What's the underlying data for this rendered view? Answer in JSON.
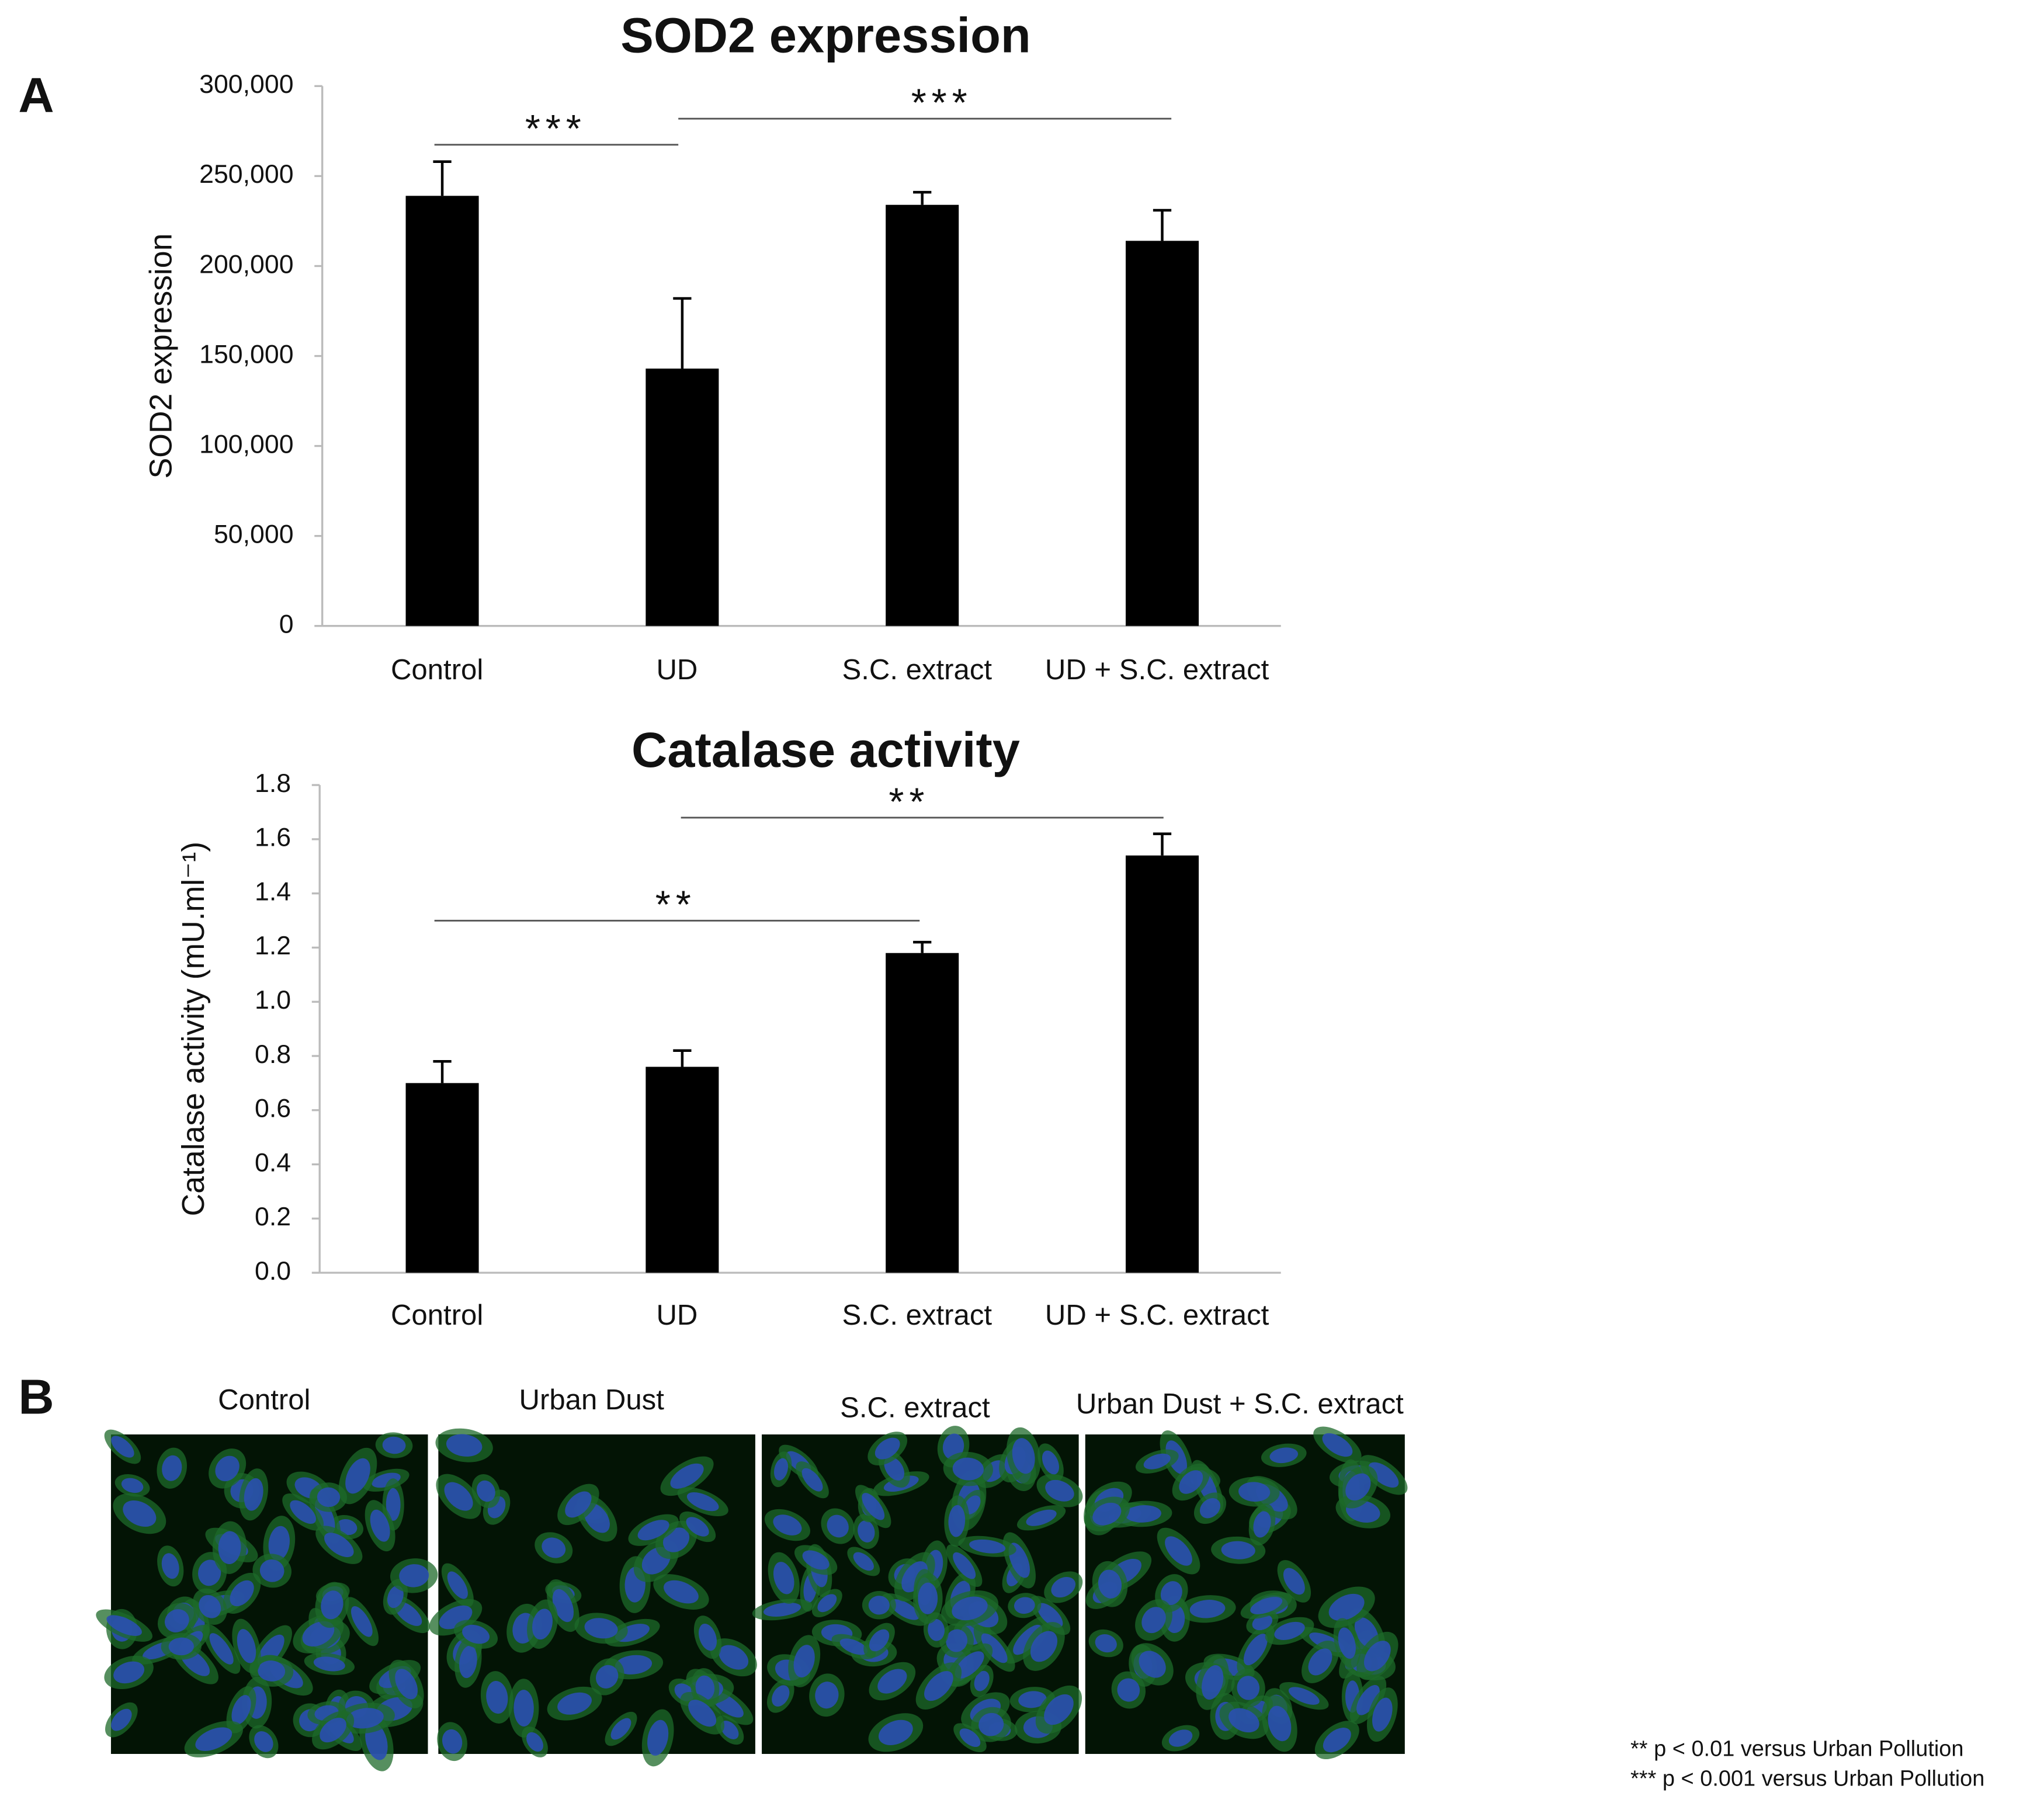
{
  "panel_labels": [
    "A",
    "B"
  ],
  "chart_data": [
    {
      "type": "bar",
      "title": "SOD2 expression",
      "y_label": "SOD2 expression",
      "categories": [
        "Control",
        "UD",
        "S.C. extract",
        "UD + S.C. extract"
      ],
      "values": [
        239000,
        143000,
        234000,
        214000
      ],
      "errors": [
        19000,
        39000,
        7000,
        17000
      ],
      "color": "#000000",
      "ylim": [
        0,
        300000
      ],
      "yticks": [
        0,
        {
          "value": 50000,
          "label": "50,000"
        },
        {
          "value": 100000,
          "label": "100,000"
        },
        {
          "value": 150000,
          "label": "150,000"
        },
        {
          "value": 200000,
          "label": "200,000"
        },
        {
          "value": 250000,
          "label": "250,000"
        },
        {
          "value": 300000,
          "label": "300,000"
        }
      ],
      "annotations": [
        {
          "text": "***"
        },
        {
          "text": "***"
        }
      ]
    },
    {
      "type": "bar",
      "title": "Catalase activity",
      "y_label": "Catalase activity (mU.ml⁻¹)",
      "categories": [
        "Control",
        "UD",
        "S.C. extract",
        "UD + S.C. extract"
      ],
      "values": [
        0.7,
        0.76,
        1.18,
        1.54
      ],
      "errors": [
        0.08,
        0.06,
        0.04,
        0.08
      ],
      "color": "#000000",
      "ylim": [
        0,
        1.8
      ],
      "yticks": [
        {
          "value": 0,
          "label": "0.0"
        },
        0.2,
        0.4,
        0.6,
        0.8,
        {
          "value": 1,
          "label": "1.0"
        },
        1.2,
        1.4,
        1.6,
        1.8
      ],
      "annotations": [
        {
          "text": "**"
        },
        {
          "text": "**"
        }
      ]
    }
  ],
  "images": [
    {
      "label": "Control"
    },
    {
      "label": "Urban Dust"
    },
    {
      "label": "S.C. extract"
    },
    {
      "label": "Urban Dust + S.C. extract"
    }
  ],
  "footnotes": [
    "** p < 0.01 versus Urban Pollution",
    "*** p < 0.001 versus Urban Pollution"
  ]
}
